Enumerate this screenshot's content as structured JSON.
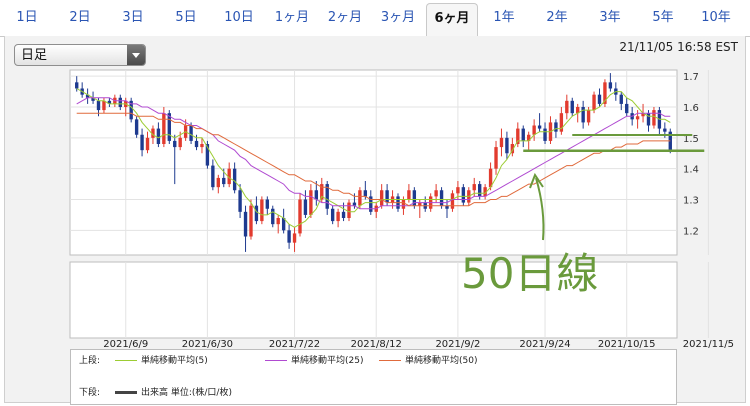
{
  "tabs": [
    "1日",
    "2日",
    "3日",
    "5日",
    "10日",
    "1ヶ月",
    "2ヶ月",
    "3ヶ月",
    "6ヶ月",
    "1年",
    "2年",
    "3年",
    "5年",
    "10年"
  ],
  "active_tab": "6ヶ月",
  "period_select": {
    "value": "日足"
  },
  "timestamp": "21/11/05 16:58 EST",
  "annotation": "50日線",
  "legend": {
    "upper_label": "上段:",
    "lower_label": "下段:",
    "sma5": "単純移動平均(5)",
    "sma25": "単純移動平均(25)",
    "sma50": "単純移動平均(50)",
    "volume": "出来高 単位:(株/口/枚)"
  },
  "colors": {
    "up_candle": "#e23b2e",
    "down_candle": "#1e3a8f",
    "sma5": "#9ccc33",
    "sma25": "#b04ad1",
    "sma50": "#e06a3c",
    "annotation": "#6a9a3c",
    "volume": "#444444"
  },
  "chart_data": {
    "type": "candlestick",
    "y_ticks": [
      1.2,
      1.3,
      1.4,
      1.5,
      1.6,
      1.7
    ],
    "ylim": [
      1.12,
      1.72
    ],
    "x_tick_labels": [
      "2021/6/9",
      "2021/6/30",
      "2021/7/22",
      "2021/8/12",
      "2021/9/2",
      "2021/9/24",
      "2021/10/15",
      "2021/11/5"
    ],
    "x_tick_index": [
      9,
      24,
      40,
      55,
      70,
      86,
      101,
      116
    ],
    "grid": true,
    "candles": [
      [
        1.68,
        1.7,
        1.65,
        1.66
      ],
      [
        1.66,
        1.68,
        1.63,
        1.64
      ],
      [
        1.64,
        1.66,
        1.61,
        1.63
      ],
      [
        1.63,
        1.65,
        1.61,
        1.62
      ],
      [
        1.62,
        1.63,
        1.57,
        1.59
      ],
      [
        1.59,
        1.63,
        1.58,
        1.62
      ],
      [
        1.62,
        1.63,
        1.6,
        1.61
      ],
      [
        1.61,
        1.64,
        1.6,
        1.63
      ],
      [
        1.63,
        1.64,
        1.59,
        1.6
      ],
      [
        1.6,
        1.63,
        1.57,
        1.62
      ],
      [
        1.62,
        1.63,
        1.55,
        1.56
      ],
      [
        1.56,
        1.57,
        1.5,
        1.51
      ],
      [
        1.51,
        1.53,
        1.44,
        1.46
      ],
      [
        1.46,
        1.52,
        1.45,
        1.5
      ],
      [
        1.5,
        1.54,
        1.48,
        1.53
      ],
      [
        1.53,
        1.55,
        1.47,
        1.48
      ],
      [
        1.48,
        1.6,
        1.47,
        1.58
      ],
      [
        1.58,
        1.59,
        1.48,
        1.49
      ],
      [
        1.49,
        1.51,
        1.35,
        1.47
      ],
      [
        1.47,
        1.52,
        1.46,
        1.5
      ],
      [
        1.5,
        1.56,
        1.49,
        1.54
      ],
      [
        1.54,
        1.55,
        1.48,
        1.49
      ],
      [
        1.49,
        1.51,
        1.46,
        1.47
      ],
      [
        1.47,
        1.5,
        1.45,
        1.48
      ],
      [
        1.48,
        1.49,
        1.4,
        1.41
      ],
      [
        1.41,
        1.43,
        1.33,
        1.34
      ],
      [
        1.34,
        1.38,
        1.32,
        1.37
      ],
      [
        1.37,
        1.4,
        1.34,
        1.35
      ],
      [
        1.35,
        1.42,
        1.34,
        1.4
      ],
      [
        1.4,
        1.42,
        1.32,
        1.33
      ],
      [
        1.33,
        1.35,
        1.24,
        1.26
      ],
      [
        1.26,
        1.28,
        1.13,
        1.18
      ],
      [
        1.18,
        1.3,
        1.17,
        1.28
      ],
      [
        1.28,
        1.31,
        1.22,
        1.23
      ],
      [
        1.23,
        1.31,
        1.22,
        1.3
      ],
      [
        1.3,
        1.31,
        1.25,
        1.27
      ],
      [
        1.27,
        1.28,
        1.21,
        1.22
      ],
      [
        1.22,
        1.25,
        1.19,
        1.24
      ],
      [
        1.24,
        1.27,
        1.19,
        1.2
      ],
      [
        1.2,
        1.22,
        1.14,
        1.16
      ],
      [
        1.16,
        1.21,
        1.13,
        1.19
      ],
      [
        1.19,
        1.32,
        1.18,
        1.3
      ],
      [
        1.3,
        1.33,
        1.24,
        1.25
      ],
      [
        1.25,
        1.35,
        1.24,
        1.33
      ],
      [
        1.33,
        1.36,
        1.28,
        1.3
      ],
      [
        1.3,
        1.37,
        1.29,
        1.35
      ],
      [
        1.35,
        1.36,
        1.25,
        1.27
      ],
      [
        1.27,
        1.28,
        1.22,
        1.23
      ],
      [
        1.23,
        1.27,
        1.21,
        1.26
      ],
      [
        1.26,
        1.29,
        1.23,
        1.24
      ],
      [
        1.24,
        1.3,
        1.23,
        1.29
      ],
      [
        1.29,
        1.32,
        1.27,
        1.28
      ],
      [
        1.28,
        1.34,
        1.27,
        1.33
      ],
      [
        1.33,
        1.36,
        1.3,
        1.31
      ],
      [
        1.31,
        1.33,
        1.25,
        1.26
      ],
      [
        1.26,
        1.29,
        1.24,
        1.28
      ],
      [
        1.28,
        1.35,
        1.27,
        1.33
      ],
      [
        1.33,
        1.35,
        1.28,
        1.29
      ],
      [
        1.29,
        1.33,
        1.27,
        1.31
      ],
      [
        1.31,
        1.32,
        1.26,
        1.27
      ],
      [
        1.27,
        1.31,
        1.25,
        1.3
      ],
      [
        1.3,
        1.35,
        1.29,
        1.33
      ],
      [
        1.33,
        1.34,
        1.27,
        1.28
      ],
      [
        1.28,
        1.3,
        1.24,
        1.29
      ],
      [
        1.29,
        1.31,
        1.26,
        1.27
      ],
      [
        1.27,
        1.32,
        1.26,
        1.31
      ],
      [
        1.31,
        1.35,
        1.29,
        1.33
      ],
      [
        1.33,
        1.34,
        1.27,
        1.28
      ],
      [
        1.28,
        1.3,
        1.24,
        1.27
      ],
      [
        1.27,
        1.33,
        1.26,
        1.32
      ],
      [
        1.32,
        1.36,
        1.3,
        1.34
      ],
      [
        1.34,
        1.35,
        1.28,
        1.29
      ],
      [
        1.29,
        1.34,
        1.28,
        1.33
      ],
      [
        1.33,
        1.37,
        1.31,
        1.35
      ],
      [
        1.35,
        1.36,
        1.3,
        1.31
      ],
      [
        1.31,
        1.35,
        1.3,
        1.34
      ],
      [
        1.34,
        1.42,
        1.33,
        1.4
      ],
      [
        1.4,
        1.49,
        1.38,
        1.47
      ],
      [
        1.47,
        1.53,
        1.44,
        1.5
      ],
      [
        1.5,
        1.52,
        1.43,
        1.45
      ],
      [
        1.45,
        1.5,
        1.44,
        1.48
      ],
      [
        1.48,
        1.55,
        1.47,
        1.53
      ],
      [
        1.53,
        1.54,
        1.47,
        1.49
      ],
      [
        1.49,
        1.52,
        1.46,
        1.51
      ],
      [
        1.51,
        1.56,
        1.49,
        1.54
      ],
      [
        1.54,
        1.58,
        1.52,
        1.53
      ],
      [
        1.53,
        1.55,
        1.48,
        1.49
      ],
      [
        1.49,
        1.57,
        1.48,
        1.55
      ],
      [
        1.55,
        1.56,
        1.5,
        1.52
      ],
      [
        1.52,
        1.6,
        1.51,
        1.58
      ],
      [
        1.58,
        1.64,
        1.56,
        1.62
      ],
      [
        1.62,
        1.63,
        1.57,
        1.58
      ],
      [
        1.58,
        1.61,
        1.55,
        1.6
      ],
      [
        1.6,
        1.62,
        1.53,
        1.55
      ],
      [
        1.55,
        1.6,
        1.54,
        1.59
      ],
      [
        1.59,
        1.65,
        1.58,
        1.64
      ],
      [
        1.64,
        1.66,
        1.6,
        1.61
      ],
      [
        1.61,
        1.69,
        1.6,
        1.68
      ],
      [
        1.68,
        1.71,
        1.65,
        1.66
      ],
      [
        1.66,
        1.68,
        1.62,
        1.64
      ],
      [
        1.64,
        1.65,
        1.59,
        1.61
      ],
      [
        1.61,
        1.63,
        1.57,
        1.58
      ],
      [
        1.58,
        1.6,
        1.54,
        1.56
      ],
      [
        1.56,
        1.59,
        1.53,
        1.57
      ],
      [
        1.57,
        1.61,
        1.55,
        1.58
      ],
      [
        1.58,
        1.59,
        1.52,
        1.54
      ],
      [
        1.54,
        1.6,
        1.53,
        1.59
      ],
      [
        1.59,
        1.6,
        1.51,
        1.53
      ],
      [
        1.53,
        1.55,
        1.5,
        1.52
      ],
      [
        1.52,
        1.53,
        1.45,
        1.46
      ]
    ],
    "sma5": [
      1.66,
      1.65,
      1.64,
      1.63,
      1.62,
      1.62,
      1.61,
      1.61,
      1.61,
      1.61,
      1.6,
      1.58,
      1.55,
      1.53,
      1.51,
      1.5,
      1.51,
      1.51,
      1.5,
      1.51,
      1.52,
      1.51,
      1.5,
      1.5,
      1.47,
      1.44,
      1.41,
      1.39,
      1.37,
      1.36,
      1.34,
      1.31,
      1.29,
      1.26,
      1.25,
      1.25,
      1.26,
      1.25,
      1.24,
      1.22,
      1.21,
      1.22,
      1.23,
      1.25,
      1.27,
      1.31,
      1.3,
      1.29,
      1.28,
      1.27,
      1.26,
      1.26,
      1.28,
      1.29,
      1.29,
      1.29,
      1.3,
      1.3,
      1.3,
      1.3,
      1.3,
      1.3,
      1.3,
      1.3,
      1.3,
      1.3,
      1.3,
      1.3,
      1.3,
      1.3,
      1.31,
      1.31,
      1.31,
      1.32,
      1.32,
      1.32,
      1.34,
      1.37,
      1.41,
      1.43,
      1.46,
      1.49,
      1.49,
      1.49,
      1.51,
      1.52,
      1.52,
      1.52,
      1.53,
      1.53,
      1.55,
      1.57,
      1.58,
      1.59,
      1.59,
      1.59,
      1.6,
      1.62,
      1.64,
      1.65,
      1.65,
      1.63,
      1.62,
      1.6,
      1.58,
      1.57,
      1.57,
      1.56,
      1.56,
      1.55
    ],
    "sma25": [
      1.61,
      1.62,
      1.63,
      1.63,
      1.63,
      1.63,
      1.63,
      1.62,
      1.62,
      1.62,
      1.61,
      1.61,
      1.6,
      1.6,
      1.59,
      1.58,
      1.58,
      1.57,
      1.56,
      1.56,
      1.55,
      1.54,
      1.54,
      1.53,
      1.52,
      1.51,
      1.49,
      1.48,
      1.47,
      1.46,
      1.44,
      1.43,
      1.41,
      1.4,
      1.39,
      1.38,
      1.37,
      1.36,
      1.35,
      1.33,
      1.32,
      1.32,
      1.31,
      1.31,
      1.3,
      1.29,
      1.29,
      1.28,
      1.28,
      1.28,
      1.28,
      1.28,
      1.27,
      1.27,
      1.27,
      1.27,
      1.28,
      1.28,
      1.28,
      1.28,
      1.28,
      1.28,
      1.29,
      1.29,
      1.29,
      1.29,
      1.29,
      1.29,
      1.29,
      1.3,
      1.3,
      1.3,
      1.3,
      1.31,
      1.31,
      1.31,
      1.32,
      1.33,
      1.34,
      1.35,
      1.36,
      1.37,
      1.38,
      1.39,
      1.4,
      1.41,
      1.42,
      1.43,
      1.44,
      1.45,
      1.46,
      1.47,
      1.48,
      1.49,
      1.5,
      1.51,
      1.52,
      1.53,
      1.54,
      1.55,
      1.56,
      1.57,
      1.57,
      1.58,
      1.58,
      1.58,
      1.58,
      1.58,
      1.57,
      1.57
    ],
    "sma50": [
      1.58,
      1.58,
      1.58,
      1.58,
      1.58,
      1.58,
      1.58,
      1.58,
      1.58,
      1.58,
      1.58,
      1.57,
      1.57,
      1.57,
      1.57,
      1.56,
      1.56,
      1.56,
      1.55,
      1.55,
      1.54,
      1.54,
      1.53,
      1.53,
      1.52,
      1.51,
      1.51,
      1.5,
      1.49,
      1.48,
      1.47,
      1.46,
      1.45,
      1.44,
      1.43,
      1.42,
      1.41,
      1.4,
      1.39,
      1.38,
      1.38,
      1.37,
      1.36,
      1.36,
      1.35,
      1.34,
      1.34,
      1.33,
      1.33,
      1.32,
      1.32,
      1.31,
      1.31,
      1.31,
      1.3,
      1.3,
      1.3,
      1.29,
      1.29,
      1.29,
      1.29,
      1.28,
      1.28,
      1.28,
      1.28,
      1.28,
      1.28,
      1.28,
      1.28,
      1.28,
      1.28,
      1.28,
      1.28,
      1.29,
      1.29,
      1.29,
      1.3,
      1.3,
      1.31,
      1.31,
      1.32,
      1.33,
      1.34,
      1.35,
      1.35,
      1.36,
      1.37,
      1.38,
      1.39,
      1.4,
      1.41,
      1.41,
      1.42,
      1.43,
      1.44,
      1.45,
      1.45,
      1.46,
      1.46,
      1.47,
      1.47,
      1.48,
      1.48,
      1.48,
      1.49,
      1.49,
      1.49,
      1.49,
      1.49,
      1.49
    ],
    "volume_panel": "empty"
  }
}
